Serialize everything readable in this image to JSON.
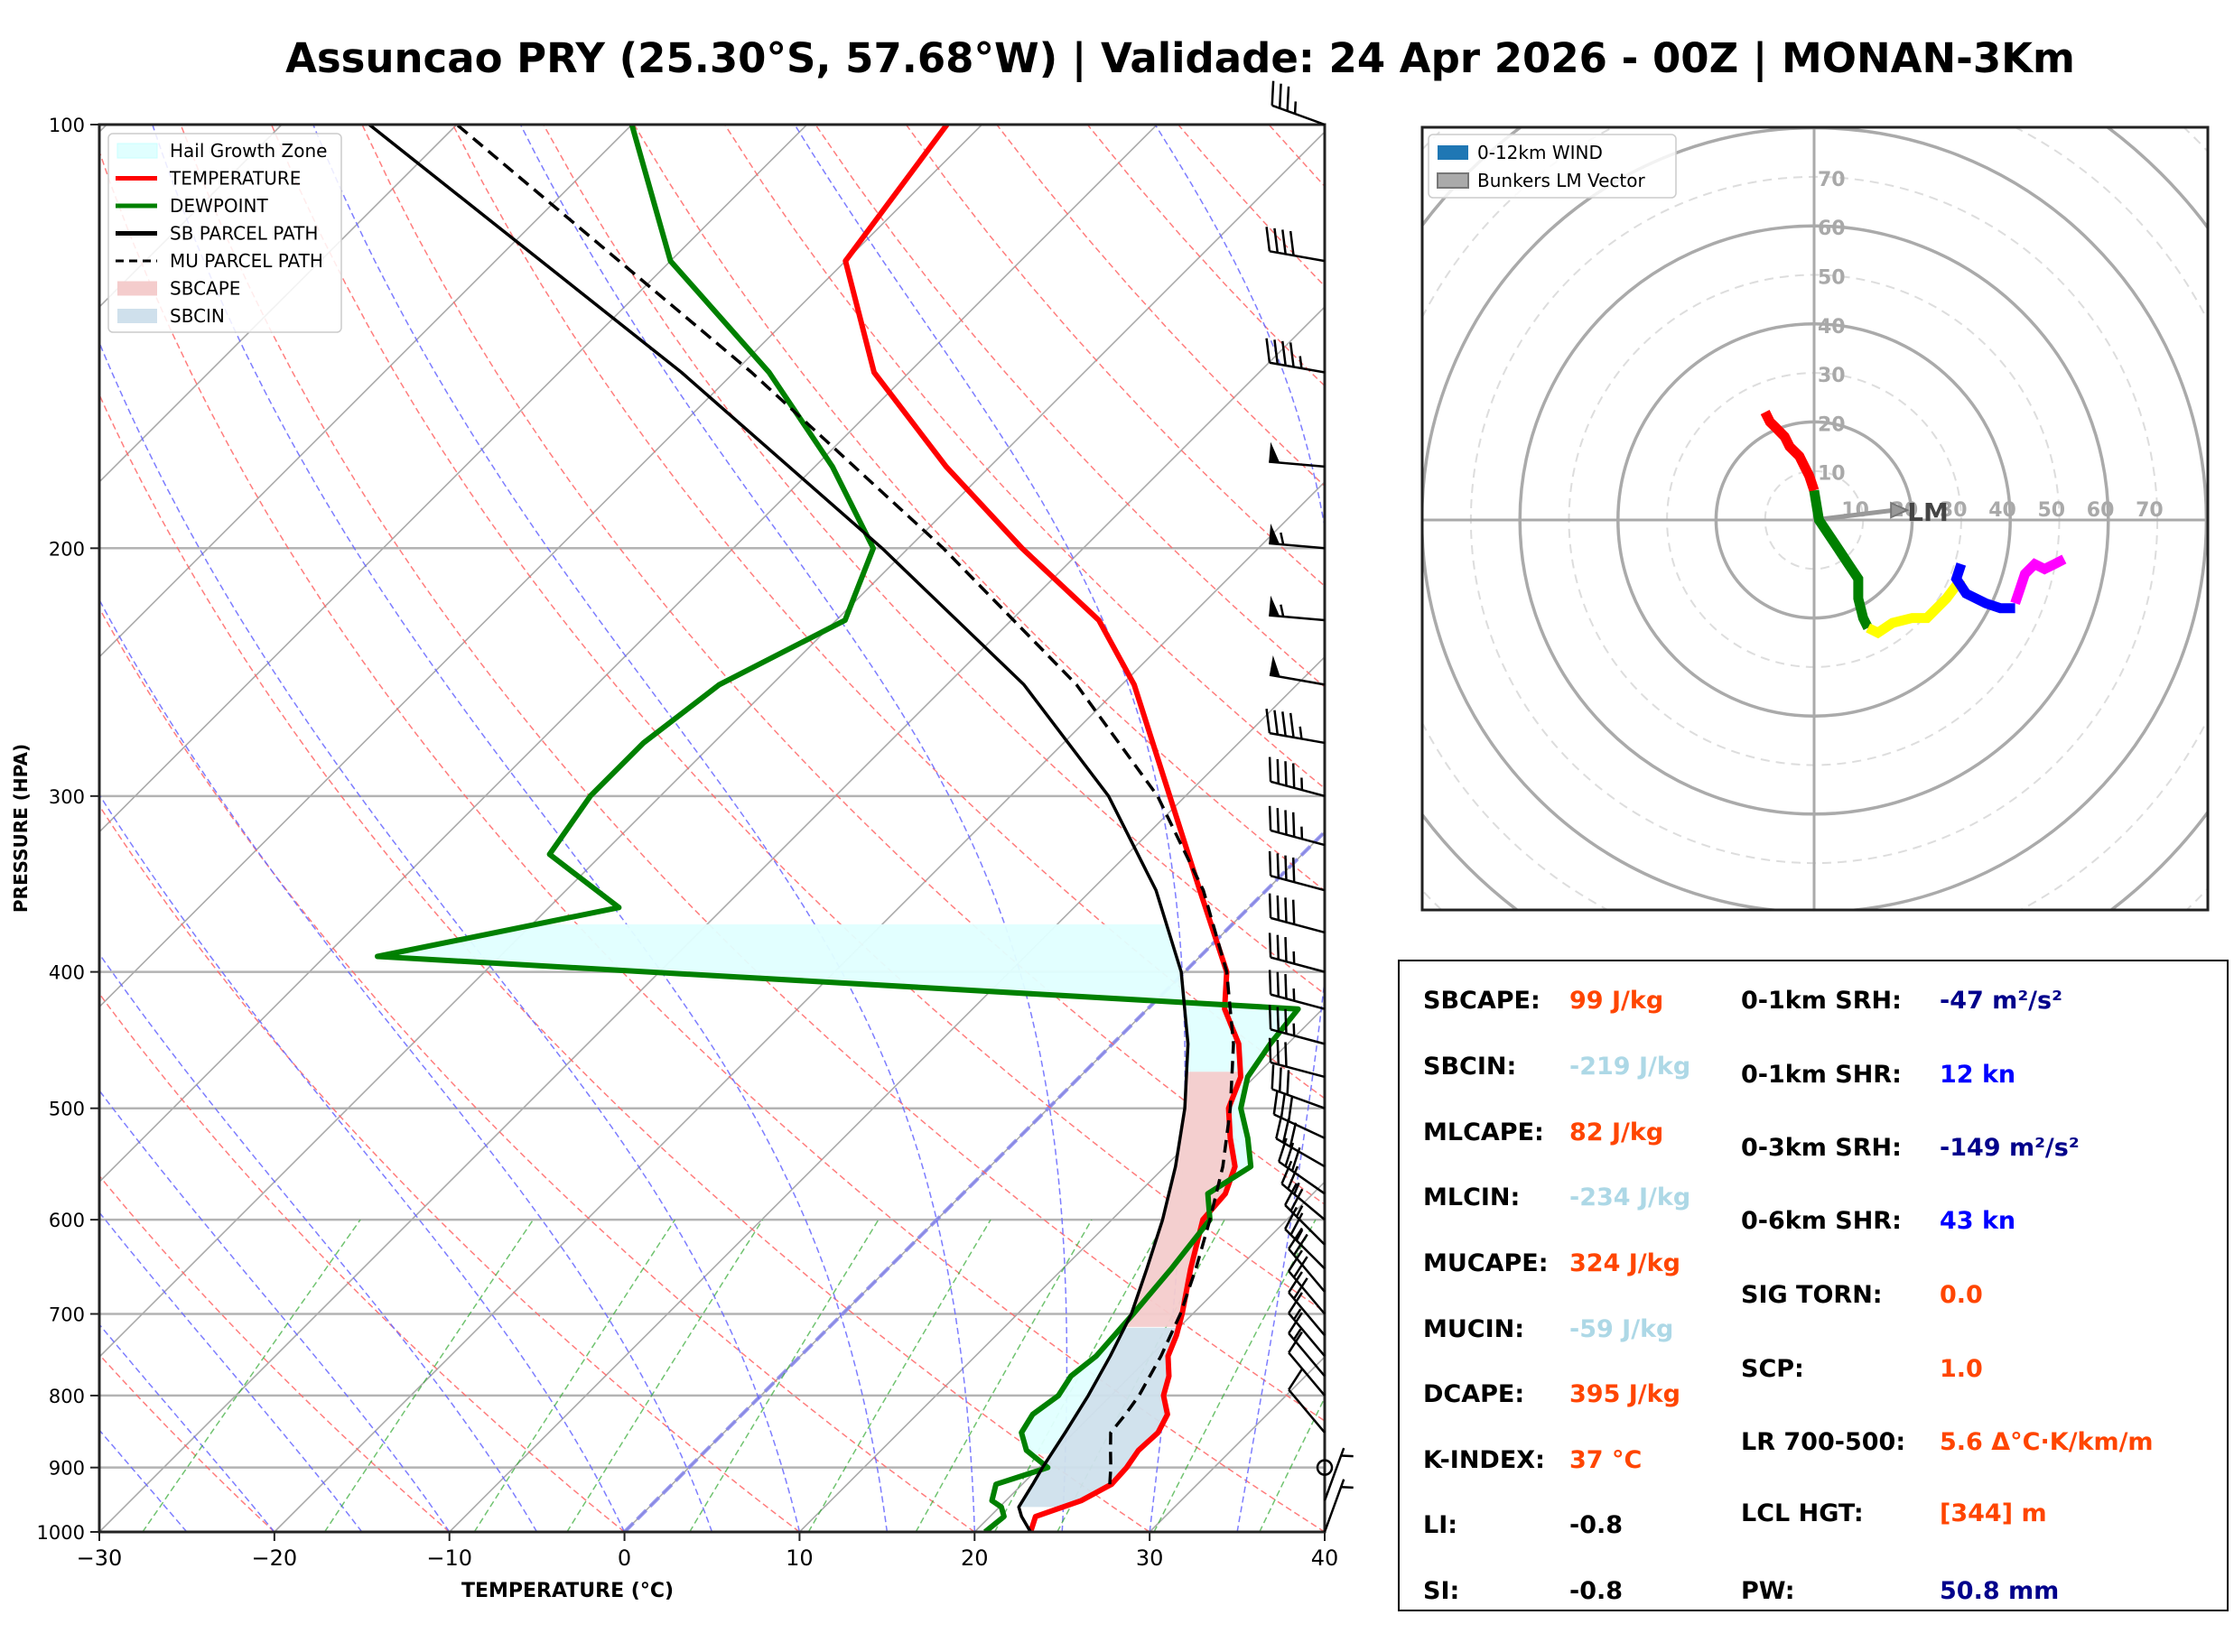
{
  "title": "Assuncao PRY (25.30°S, 57.68°W) | Validade: 24 Apr 2026 - 00Z | MONAN-3Km",
  "chart_data": [
    {
      "type": "line",
      "name": "skew-t",
      "xlabel": "TEMPERATURE (°C)",
      "ylabel": "PRESSURE (HPA)",
      "xlim": [
        -30,
        40
      ],
      "ylim": [
        1000,
        100
      ],
      "yscale": "log",
      "xticks": [
        -30,
        -20,
        -10,
        0,
        10,
        20,
        30,
        40
      ],
      "xtick_labels": [
        "−30",
        "−20",
        "−10",
        "0",
        "10",
        "20",
        "30",
        "40"
      ],
      "yticks": [
        100,
        200,
        300,
        400,
        500,
        600,
        700,
        800,
        900,
        1000
      ],
      "ytick_labels": [
        "100",
        "200",
        "300",
        "400",
        "500",
        "600",
        "700",
        "800",
        "900",
        "1000"
      ],
      "grid": true,
      "legend": {
        "position": "top-left",
        "entries": [
          {
            "label": "Hail Growth Zone",
            "kind": "patch",
            "color": "#e0ffff"
          },
          {
            "label": "TEMPERATURE",
            "kind": "line",
            "color": "#ff0000"
          },
          {
            "label": "DEWPOINT",
            "kind": "line",
            "color": "#008000"
          },
          {
            "label": "SB PARCEL PATH",
            "kind": "line",
            "color": "#000000"
          },
          {
            "label": "MU PARCEL PATH",
            "kind": "dashed",
            "color": "#000000"
          },
          {
            "label": "SBCAPE",
            "kind": "patch",
            "color": "#f4cccc"
          },
          {
            "label": "SBCIN",
            "kind": "patch",
            "color": "#cfe0ec"
          }
        ]
      },
      "series": [
        {
          "name": "TEMPERATURE",
          "color": "#ff0000",
          "pressure": [
            1000,
            975,
            950,
            925,
            900,
            875,
            850,
            825,
            800,
            775,
            750,
            725,
            700,
            650,
            600,
            575,
            550,
            525,
            500,
            475,
            450,
            425,
            400,
            350,
            300,
            250,
            225,
            200,
            175,
            150,
            125,
            100
          ],
          "values": [
            23.2,
            22.6,
            24.3,
            25.1,
            25.0,
            24.7,
            24.8,
            24.3,
            23.0,
            22.2,
            21.0,
            20.3,
            19.4,
            17.3,
            15.2,
            15.0,
            14.0,
            12.1,
            10.3,
            9.2,
            7.2,
            4.4,
            2.4,
            -3.8,
            -10.9,
            -19.3,
            -25.0,
            -33.5,
            -42.5,
            -52.0,
            -60.0,
            -62.0
          ]
        },
        {
          "name": "DEWPOINT",
          "color": "#008000",
          "pressure": [
            1000,
            975,
            960,
            950,
            925,
            900,
            875,
            850,
            825,
            800,
            775,
            750,
            700,
            650,
            600,
            575,
            550,
            525,
            500,
            475,
            450,
            425,
            390,
            360,
            330,
            300,
            275,
            250,
            225,
            200,
            175,
            150,
            125,
            100
          ],
          "values": [
            20.6,
            20.8,
            20.1,
            19.2,
            18.5,
            20.5,
            18.3,
            17.0,
            16.6,
            17.0,
            16.6,
            16.9,
            16.6,
            16.2,
            15.6,
            14.0,
            14.9,
            13.1,
            11.0,
            9.6,
            9.0,
            8.6,
            -47.0,
            -36.0,
            -43.0,
            -44.0,
            -44.0,
            -43.0,
            -39.5,
            -42.0,
            -49.0,
            -58.0,
            -70.0,
            -80.0
          ]
        },
        {
          "name": "SB PARCEL PATH",
          "color": "#000000",
          "pressure": [
            1000,
            975,
            960,
            925,
            900,
            850,
            800,
            750,
            700,
            650,
            600,
            550,
            500,
            450,
            400,
            350,
            300,
            250,
            200,
            150,
            100
          ],
          "values": [
            23.2,
            21.8,
            21.1,
            20.6,
            20.2,
            19.5,
            18.7,
            17.7,
            16.5,
            14.8,
            12.9,
            10.6,
            7.8,
            4.3,
            -0.2,
            -6.3,
            -14.4,
            -25.6,
            -41.5,
            -63.0,
            -95.0
          ]
        },
        {
          "name": "MU PARCEL PATH",
          "color": "#000000",
          "dashed": true,
          "pressure": [
            925,
            900,
            875,
            850,
            825,
            800,
            750,
            700,
            650,
            600,
            550,
            500,
            450,
            400,
            350,
            300,
            250,
            200,
            150,
            100
          ],
          "values": [
            25.0,
            24.1,
            23.1,
            22.1,
            21.9,
            21.6,
            20.6,
            19.3,
            17.6,
            15.6,
            13.3,
            10.4,
            6.9,
            2.4,
            -3.6,
            -11.6,
            -22.6,
            -38.0,
            -59.0,
            -90.0
          ]
        }
      ],
      "hail_growth_zone": {
        "top_pressure": 370,
        "bottom_pressure": 880,
        "color": "#e0ffff"
      },
      "wind_barbs": {
        "pressure": [
          100,
          125,
          150,
          175,
          200,
          225,
          250,
          275,
          300,
          325,
          350,
          375,
          400,
          425,
          450,
          475,
          500,
          525,
          550,
          575,
          600,
          625,
          650,
          675,
          700,
          725,
          750,
          775,
          800,
          850,
          900,
          950,
          1000
        ],
        "speed_kt": [
          35,
          40,
          45,
          50,
          55,
          55,
          50,
          45,
          45,
          45,
          40,
          40,
          35,
          35,
          35,
          30,
          30,
          30,
          30,
          30,
          25,
          25,
          25,
          20,
          20,
          20,
          15,
          15,
          10,
          10,
          0,
          5,
          5
        ],
        "direction_deg": [
          290,
          280,
          280,
          275,
          275,
          275,
          280,
          280,
          285,
          285,
          285,
          285,
          285,
          285,
          285,
          285,
          290,
          295,
          300,
          305,
          310,
          315,
          315,
          320,
          320,
          320,
          320,
          320,
          320,
          320,
          0,
          20,
          20
        ]
      }
    },
    {
      "type": "line",
      "name": "hodograph",
      "legend": {
        "position": "top-left",
        "entries": [
          {
            "label": "0-12km WIND",
            "kind": "patch",
            "color": "#1f77b4"
          },
          {
            "label": "Bunkers LM Vector",
            "kind": "patch",
            "color": "#aaaaaa"
          }
        ]
      },
      "rings": [
        10,
        20,
        30,
        40,
        50,
        60,
        70,
        80
      ],
      "ring_labels": [
        "10",
        "20",
        "30",
        "40",
        "50",
        "60",
        "70"
      ],
      "x_ring_labels": [
        "10",
        "20",
        "30",
        "40",
        "50",
        "60",
        "70"
      ],
      "axis_range": [
        -80,
        80
      ],
      "bunkers_lm": {
        "u": 19,
        "v": 2,
        "label": "LM"
      },
      "segments": [
        {
          "color": "#ff0000",
          "u": [
            0,
            -1,
            -2,
            -3,
            -5,
            -6,
            -8,
            -9,
            -10
          ],
          "v": [
            6,
            9,
            11,
            13,
            15,
            17,
            19,
            20,
            22
          ]
        },
        {
          "color": "#008000",
          "u": [
            0,
            1,
            3,
            5,
            7,
            9,
            9,
            10,
            11
          ],
          "v": [
            6,
            0,
            -3,
            -6,
            -9,
            -12,
            -16,
            -20,
            -22
          ]
        },
        {
          "color": "#ffff00",
          "u": [
            11,
            13,
            16,
            20,
            23,
            27,
            30
          ],
          "v": [
            -22,
            -23,
            -21,
            -20,
            -20,
            -16,
            -12
          ]
        },
        {
          "color": "#0000ff",
          "u": [
            30,
            29,
            31,
            35,
            38,
            41
          ],
          "v": [
            -9,
            -12,
            -15,
            -17,
            -18,
            -18
          ]
        },
        {
          "color": "#ff00ff",
          "u": [
            41,
            42,
            43,
            45,
            47,
            49,
            51
          ],
          "v": [
            -17,
            -14,
            -11,
            -9,
            -10,
            -9,
            -8
          ]
        }
      ]
    }
  ],
  "stats": {
    "left": [
      {
        "label": "SBCAPE:",
        "value": "99 J/kg",
        "color": "#ff4500"
      },
      {
        "label": "SBCIN:",
        "value": "-219 J/kg",
        "color": "#add8e6"
      },
      {
        "label": "MLCAPE:",
        "value": "82 J/kg",
        "color": "#ff4500"
      },
      {
        "label": "MLCIN:",
        "value": "-234 J/kg",
        "color": "#add8e6"
      },
      {
        "label": "MUCAPE:",
        "value": "324 J/kg",
        "color": "#ff4500"
      },
      {
        "label": "MUCIN:",
        "value": "-59 J/kg",
        "color": "#add8e6"
      },
      {
        "label": "DCAPE:",
        "value": "395 J/kg",
        "color": "#ff4500"
      },
      {
        "label": "K-INDEX:",
        "value": "37 °C",
        "color": "#ff4500"
      },
      {
        "label": "LI:",
        "value": "-0.8",
        "color": "#000000"
      },
      {
        "label": "SI:",
        "value": "-0.8",
        "color": "#000000"
      }
    ],
    "right": [
      {
        "label": "0-1km SRH:",
        "value": "-47 m²/s²",
        "color": "#00008b"
      },
      {
        "label": "0-1km SHR:",
        "value": "12 kn",
        "color": "#0000ff"
      },
      {
        "label": "0-3km SRH:",
        "value": "-149 m²/s²",
        "color": "#00008b"
      },
      {
        "label": "0-6km SHR:",
        "value": "43 kn",
        "color": "#0000ff"
      },
      {
        "label": "SIG TORN:",
        "value": "0.0",
        "color": "#ff4500"
      },
      {
        "label": "SCP:",
        "value": "1.0",
        "color": "#ff4500"
      },
      {
        "label": "LR 700-500:",
        "value": "5.6 Δ°C·K/km/m",
        "color": "#ff4500"
      },
      {
        "label": "LCL HGT:",
        "value": "[344] m",
        "color": "#ff4500"
      },
      {
        "label": "PW:",
        "value": "50.8 mm",
        "color": "#00008b"
      }
    ]
  }
}
